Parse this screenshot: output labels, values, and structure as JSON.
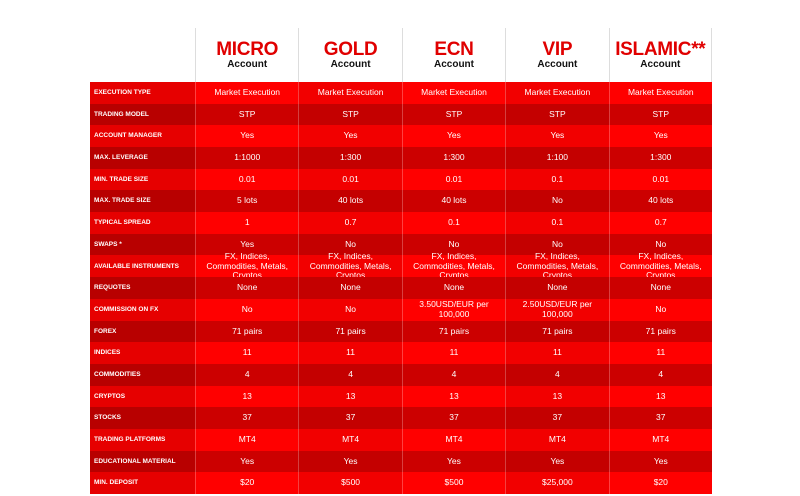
{
  "table": {
    "columns": [
      {
        "name": "MICRO",
        "sub": "Account"
      },
      {
        "name": "GOLD",
        "sub": "Account"
      },
      {
        "name": "ECN",
        "sub": "Account"
      },
      {
        "name": "VIP",
        "sub": "Account"
      },
      {
        "name": "ISLAMIC**",
        "sub": "Account"
      }
    ],
    "rows": [
      {
        "label": "EXECUTION TYPE",
        "values": [
          "Market Execution",
          "Market Execution",
          "Market Execution",
          "Market Execution",
          "Market Execution"
        ]
      },
      {
        "label": "TRADING MODEL",
        "values": [
          "STP",
          "STP",
          "STP",
          "STP",
          "STP"
        ]
      },
      {
        "label": "ACCOUNT MANAGER",
        "values": [
          "Yes",
          "Yes",
          "Yes",
          "Yes",
          "Yes"
        ]
      },
      {
        "label": "MAX. LEVERAGE",
        "values": [
          "1:1000",
          "1:300",
          "1:300",
          "1:100",
          "1:300"
        ]
      },
      {
        "label": "MIN. TRADE SIZE",
        "values": [
          "0.01",
          "0.01",
          "0.01",
          "0.1",
          "0.01"
        ]
      },
      {
        "label": "MAX. TRADE SIZE",
        "values": [
          "5 lots",
          "40 lots",
          "40 lots",
          "No",
          "40 lots"
        ]
      },
      {
        "label": "TYPICAL SPREAD",
        "values": [
          "1",
          "0.7",
          "0.1",
          "0.1",
          "0.7"
        ]
      },
      {
        "label": "SWAPS *",
        "values": [
          "Yes",
          "No",
          "No",
          "No",
          "No"
        ]
      },
      {
        "label": "AVAILABLE INSTRUMENTS",
        "values": [
          "FX, Indices, Commodities, Metals, Cryptos",
          "FX, Indices, Commodities, Metals, Cryptos",
          "FX, Indices, Commodities, Metals, Cryptos",
          "FX, Indices, Commodities, Metals, Cryptos",
          "FX, Indices, Commodities, Metals, Cryptos"
        ]
      },
      {
        "label": "REQUOTES",
        "values": [
          "None",
          "None",
          "None",
          "None",
          "None"
        ]
      },
      {
        "label": "COMMISSION ON FX",
        "values": [
          "No",
          "No",
          "3.50USD/EUR per 100,000",
          "2.50USD/EUR per 100,000",
          "No"
        ]
      },
      {
        "label": "FOREX",
        "values": [
          "71 pairs",
          "71 pairs",
          "71 pairs",
          "71 pairs",
          "71 pairs"
        ]
      },
      {
        "label": "INDICES",
        "values": [
          "11",
          "11",
          "11",
          "11",
          "11"
        ]
      },
      {
        "label": "COMMODITIES",
        "values": [
          "4",
          "4",
          "4",
          "4",
          "4"
        ]
      },
      {
        "label": "CRYPTOS",
        "values": [
          "13",
          "13",
          "13",
          "13",
          "13"
        ]
      },
      {
        "label": "STOCKS",
        "values": [
          "37",
          "37",
          "37",
          "37",
          "37"
        ]
      },
      {
        "label": "TRADING PLATFORMS",
        "values": [
          "MT4",
          "MT4",
          "MT4",
          "MT4",
          "MT4"
        ]
      },
      {
        "label": "EDUCATIONAL MATERIAL",
        "values": [
          "Yes",
          "Yes",
          "Yes",
          "Yes",
          "Yes"
        ]
      },
      {
        "label": "MIN. DEPOSIT",
        "values": [
          "$20",
          "$500",
          "$500",
          "$25,000",
          "$20"
        ]
      }
    ]
  }
}
